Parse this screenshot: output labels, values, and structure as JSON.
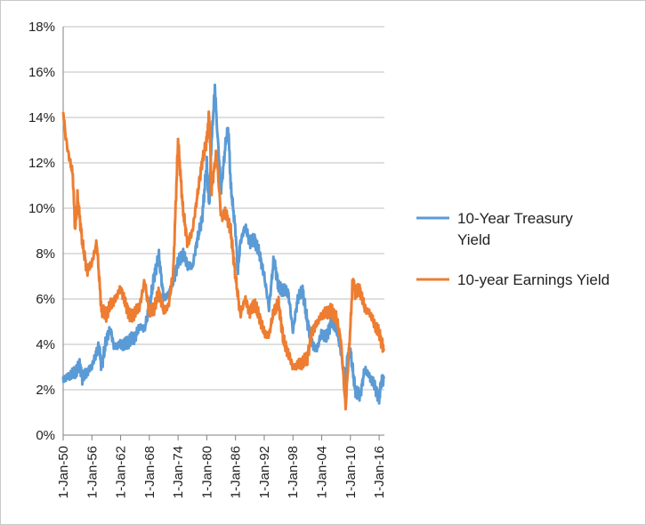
{
  "chart_data": {
    "type": "line",
    "title": "",
    "xlabel": "",
    "ylabel": "",
    "ylim": [
      0,
      18
    ],
    "yticks": [
      "0%",
      "2%",
      "4%",
      "6%",
      "8%",
      "10%",
      "12%",
      "14%",
      "16%",
      "18%"
    ],
    "xticks": [
      "1-Jan-50",
      "1-Jan-56",
      "1-Jan-62",
      "1-Jan-68",
      "1-Jan-74",
      "1-Jan-80",
      "1-Jan-86",
      "1-Jan-92",
      "1-Jan-98",
      "1-Jan-04",
      "1-Jan-10",
      "1-Jan-16"
    ],
    "xlim": [
      1950,
      2017.1
    ],
    "grid": true,
    "legend_position": "right",
    "series": [
      {
        "name": "10-Year Treasury Yield",
        "legend_lines": [
          "10-Year Treasury",
          "Yield"
        ],
        "color": "#5b9bd5",
        "points": [
          [
            1950,
            2.4
          ],
          [
            1951,
            2.6
          ],
          [
            1952,
            2.7
          ],
          [
            1953,
            2.9
          ],
          [
            1953.5,
            3.1
          ],
          [
            1954,
            2.5
          ],
          [
            1955,
            2.8
          ],
          [
            1956,
            3.0
          ],
          [
            1957,
            3.7
          ],
          [
            1957.5,
            3.9
          ],
          [
            1958,
            3.0
          ],
          [
            1959,
            4.2
          ],
          [
            1959.9,
            4.7
          ],
          [
            1960.5,
            4.0
          ],
          [
            1961,
            3.9
          ],
          [
            1962,
            4.0
          ],
          [
            1963,
            4.0
          ],
          [
            1964,
            4.2
          ],
          [
            1965,
            4.3
          ],
          [
            1966,
            4.8
          ],
          [
            1967,
            4.7
          ],
          [
            1968,
            5.6
          ],
          [
            1969,
            7.0
          ],
          [
            1970,
            7.9
          ],
          [
            1971,
            6.0
          ],
          [
            1972,
            6.2
          ],
          [
            1973,
            6.8
          ],
          [
            1974,
            7.6
          ],
          [
            1975,
            8.0
          ],
          [
            1976,
            7.5
          ],
          [
            1977,
            7.4
          ],
          [
            1978,
            8.6
          ],
          [
            1979,
            9.5
          ],
          [
            1980,
            12.0
          ],
          [
            1980.5,
            10.0
          ],
          [
            1981,
            13.0
          ],
          [
            1981.7,
            15.3
          ],
          [
            1982,
            14.0
          ],
          [
            1983,
            10.8
          ],
          [
            1984,
            13.0
          ],
          [
            1984.5,
            13.5
          ],
          [
            1985,
            11.0
          ],
          [
            1986,
            9.0
          ],
          [
            1986.5,
            7.2
          ],
          [
            1987,
            8.5
          ],
          [
            1988,
            9.2
          ],
          [
            1989,
            8.5
          ],
          [
            1990,
            8.6
          ],
          [
            1991,
            8.0
          ],
          [
            1992,
            7.0
          ],
          [
            1993,
            5.6
          ],
          [
            1994,
            7.8
          ],
          [
            1995,
            6.5
          ],
          [
            1996,
            6.4
          ],
          [
            1997,
            6.3
          ],
          [
            1998,
            4.6
          ],
          [
            1999,
            6.0
          ],
          [
            2000,
            6.4
          ],
          [
            2001,
            5.0
          ],
          [
            2002,
            4.0
          ],
          [
            2003,
            3.8
          ],
          [
            2004,
            4.5
          ],
          [
            2005,
            4.3
          ],
          [
            2006,
            5.0
          ],
          [
            2007,
            4.8
          ],
          [
            2008,
            3.7
          ],
          [
            2008.9,
            2.4
          ],
          [
            2009.5,
            3.6
          ],
          [
            2010,
            3.7
          ],
          [
            2011,
            2.0
          ],
          [
            2012,
            1.7
          ],
          [
            2013,
            2.9
          ],
          [
            2014,
            2.6
          ],
          [
            2015,
            2.2
          ],
          [
            2016,
            1.6
          ],
          [
            2016.5,
            2.4
          ],
          [
            2017,
            2.5
          ]
        ]
      },
      {
        "name": "10-year Earnings Yield",
        "legend_lines": [
          "10-year Earnings Yield"
        ],
        "color": "#ed7d31",
        "points": [
          [
            1950,
            14.3
          ],
          [
            1950.5,
            13.2
          ],
          [
            1951,
            12.5
          ],
          [
            1952,
            11.5
          ],
          [
            1952.5,
            9.0
          ],
          [
            1953,
            10.5
          ],
          [
            1954,
            8.5
          ],
          [
            1955,
            7.2
          ],
          [
            1956,
            7.6
          ],
          [
            1957,
            8.5
          ],
          [
            1958,
            5.5
          ],
          [
            1959,
            5.3
          ],
          [
            1960,
            5.8
          ],
          [
            1961,
            6.0
          ],
          [
            1962,
            6.5
          ],
          [
            1963,
            5.8
          ],
          [
            1964,
            5.2
          ],
          [
            1965,
            5.4
          ],
          [
            1966,
            5.7
          ],
          [
            1967,
            6.8
          ],
          [
            1968,
            5.4
          ],
          [
            1969,
            5.6
          ],
          [
            1970,
            6.3
          ],
          [
            1971,
            5.5
          ],
          [
            1972,
            5.7
          ],
          [
            1973,
            7.2
          ],
          [
            1974,
            13.0
          ],
          [
            1975,
            10.0
          ],
          [
            1976,
            8.4
          ],
          [
            1977,
            9.0
          ],
          [
            1978,
            10.5
          ],
          [
            1979,
            12.0
          ],
          [
            1980,
            13.0
          ],
          [
            1980.5,
            14.2
          ],
          [
            1981,
            10.8
          ],
          [
            1982,
            12.5
          ],
          [
            1983,
            9.6
          ],
          [
            1984,
            9.8
          ],
          [
            1985,
            9.0
          ],
          [
            1986,
            7.0
          ],
          [
            1987,
            5.3
          ],
          [
            1988,
            6.0
          ],
          [
            1989,
            5.4
          ],
          [
            1990,
            5.8
          ],
          [
            1991,
            5.2
          ],
          [
            1992,
            4.5
          ],
          [
            1993,
            4.4
          ],
          [
            1994,
            5.5
          ],
          [
            1995,
            5.8
          ],
          [
            1996,
            4.2
          ],
          [
            1997,
            3.6
          ],
          [
            1998,
            3.0
          ],
          [
            1999,
            3.1
          ],
          [
            2000,
            3.2
          ],
          [
            2001,
            3.4
          ],
          [
            2002,
            4.6
          ],
          [
            2003,
            4.9
          ],
          [
            2004,
            5.3
          ],
          [
            2005,
            5.4
          ],
          [
            2006,
            5.5
          ],
          [
            2007,
            5.2
          ],
          [
            2008,
            4.2
          ],
          [
            2009,
            1.2
          ],
          [
            2010,
            4.8
          ],
          [
            2010.5,
            6.9
          ],
          [
            2011,
            6.3
          ],
          [
            2012,
            6.4
          ],
          [
            2013,
            5.6
          ],
          [
            2014,
            5.4
          ],
          [
            2015,
            4.9
          ],
          [
            2016,
            4.5
          ],
          [
            2016.5,
            4.1
          ],
          [
            2017,
            3.8
          ]
        ]
      }
    ]
  }
}
